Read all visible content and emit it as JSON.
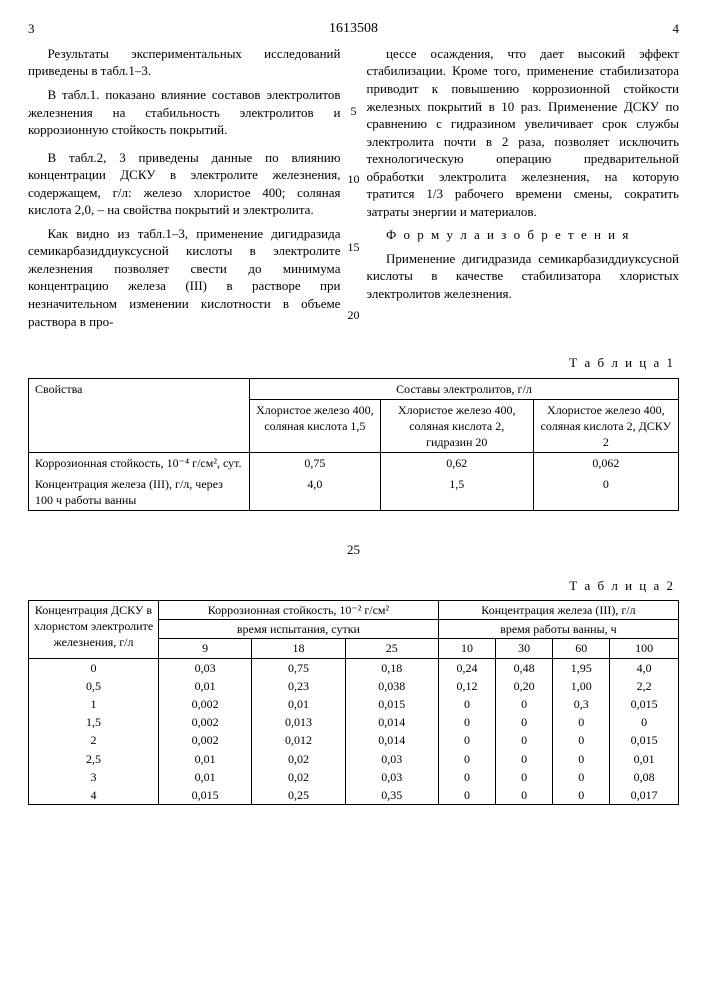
{
  "header": {
    "left_page": "3",
    "doc_number": "1613508",
    "right_page": "4"
  },
  "text": {
    "p1": "Результаты экспериментальных исследований приведены в табл.1–3.",
    "p2": "В табл.1. показано влияние составов электролитов железнения на стабильность электролитов и коррозионную стойкость покрытий.",
    "p3": "В табл.2, 3 приведены данные по влиянию концентрации ДСКУ в электролите железнения, содержащем, г/л: железо хлористое 400; соляная кислота 2,0, – на свойства покрытий и электролита.",
    "p4": "Как видно из табл.1–3, применение дигидразида семикарбазиддиуксусной кислоты в электролите железнения позволяет свести до минимума концентрацию железа (III) в растворе при незначительном изменении кислотности в объеме раствора в про-",
    "p5": "цессе осаждения, что дает высокий эффект стабилизации. Кроме того, применение стабилизатора приводит к повышению коррозионной стойкости железных покрытий в 10 раз. Применение ДСКУ по сравнению с гидразином увеличивает срок службы электролита почти в 2 раза, позволяет исключить технологическую операцию предварительной обработки электролита железнения, на которую тратится 1/3 рабочего времени смены, сократить затраты энергии и материалов.",
    "formula_head": "Ф о р м у л а  и з о б р е т е н и я",
    "p6": "Применение дигидразида семикарбазиддиуксусной кислоты в качестве стабилизатора хлористых электролитов железнения."
  },
  "line_numbers": [
    "5",
    "10",
    "15",
    "20"
  ],
  "mid_number": "25",
  "table1": {
    "label": "Т а б л и ц а  1",
    "head_props": "Свойства",
    "head_comp": "Составы электролитов, г/л",
    "comp1": "Хлористое железо 400, соляная кислота 1,5",
    "comp2": "Хлористое железо 400, соляная кислота 2, гидразин 20",
    "comp3": "Хлористое железо 400, соляная кислота 2, ДСКУ 2",
    "row1_label": "Коррозионная стойкость, 10⁻⁴ г/см², сут.",
    "row1_v1": "0,75",
    "row1_v2": "0,62",
    "row1_v3": "0,062",
    "row2_label": "Концентрация железа (III), г/л, через 100 ч работы ванны",
    "row2_v1": "4,0",
    "row2_v2": "1,5",
    "row2_v3": "0"
  },
  "table2": {
    "label": "Т а б л и ц а  2",
    "head_conc": "Концентрация ДСКУ в хлористом электролите железнения, г/л",
    "head_corr": "Коррозионная стойкость, 10⁻² г/см²",
    "head_fe": "Концентрация железа (III), г/л",
    "sub_time_test": "время испытания, сутки",
    "sub_time_bath": "время работы ванны, ч",
    "t_cols": [
      "9",
      "18",
      "25"
    ],
    "b_cols": [
      "10",
      "30",
      "60",
      "100"
    ],
    "rows": [
      {
        "c": "0",
        "t": [
          "0,03",
          "0,75",
          "0,18"
        ],
        "b": [
          "0,24",
          "0,48",
          "1,95",
          "4,0"
        ]
      },
      {
        "c": "0,5",
        "t": [
          "0,01",
          "0,23",
          "0,038"
        ],
        "b": [
          "0,12",
          "0,20",
          "1,00",
          "2,2"
        ]
      },
      {
        "c": "1",
        "t": [
          "0,002",
          "0,01",
          "0,015"
        ],
        "b": [
          "0",
          "0",
          "0,3",
          "0,015"
        ]
      },
      {
        "c": "1,5",
        "t": [
          "0,002",
          "0,013",
          "0,014"
        ],
        "b": [
          "0",
          "0",
          "0",
          "0"
        ]
      },
      {
        "c": "2",
        "t": [
          "0,002",
          "0,012",
          "0,014"
        ],
        "b": [
          "0",
          "0",
          "0",
          "0,015"
        ]
      },
      {
        "c": "2,5",
        "t": [
          "0,01",
          "0,02",
          "0,03"
        ],
        "b": [
          "0",
          "0",
          "0",
          "0,01"
        ]
      },
      {
        "c": "3",
        "t": [
          "0,01",
          "0,02",
          "0,03"
        ],
        "b": [
          "0",
          "0",
          "0",
          "0,08"
        ]
      },
      {
        "c": "4",
        "t": [
          "0,015",
          "0,25",
          "0,35"
        ],
        "b": [
          "0",
          "0",
          "0",
          "0,017"
        ]
      }
    ]
  }
}
